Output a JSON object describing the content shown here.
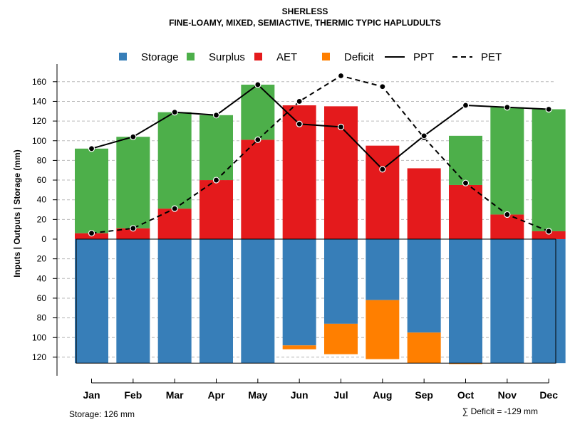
{
  "chart_data": {
    "type": "bar",
    "title": "SHERLESS",
    "subtitle": "FINE-LOAMY, MIXED, SEMIACTIVE, THERMIC TYPIC HAPLUDULTS",
    "ylabel": "Inputs | Outputs | Storage     (mm)",
    "categories": [
      "Jan",
      "Feb",
      "Mar",
      "Apr",
      "May",
      "Jun",
      "Jul",
      "Aug",
      "Sep",
      "Oct",
      "Nov",
      "Dec"
    ],
    "upper_ylim": [
      0,
      170
    ],
    "lower_ylim": [
      0,
      140
    ],
    "upper_ticks": [
      "0",
      "20",
      "40",
      "60",
      "80",
      "100",
      "120",
      "140",
      "160"
    ],
    "lower_ticks": [
      "20",
      "40",
      "60",
      "80",
      "100",
      "120"
    ],
    "series": [
      {
        "name": "AET",
        "color": "#E41A1C",
        "values": [
          6,
          11,
          31,
          60,
          101,
          136,
          135,
          95,
          72,
          55,
          25,
          8
        ]
      },
      {
        "name": "Surplus",
        "color": "#4DAF4A",
        "values": [
          86,
          93,
          98,
          66,
          56,
          0,
          0,
          0,
          0,
          50,
          109,
          124
        ]
      },
      {
        "name": "Storage",
        "color": "#377EB8",
        "values": [
          126,
          126,
          126,
          126,
          126,
          108,
          86,
          62,
          95,
          126,
          126,
          126
        ]
      },
      {
        "name": "Deficit",
        "color": "#FF7F00",
        "values": [
          0,
          0,
          0,
          0,
          0,
          4,
          31,
          60,
          31,
          1,
          0,
          0
        ]
      },
      {
        "name": "PPT",
        "style": "solid",
        "values": [
          92,
          104,
          129,
          126,
          157,
          117,
          114,
          71,
          105,
          136,
          134,
          132
        ]
      },
      {
        "name": "PET",
        "style": "dashed",
        "values": [
          6,
          11,
          31,
          60,
          101,
          140,
          166,
          155,
          103,
          57,
          25,
          8
        ]
      }
    ],
    "legend": [
      "Storage",
      "Surplus",
      "AET",
      "Deficit",
      "PPT",
      "PET"
    ],
    "legend_position": "top",
    "storage_note": "Storage: 126 mm",
    "deficit_note": "∑ Deficit = -129 mm"
  }
}
